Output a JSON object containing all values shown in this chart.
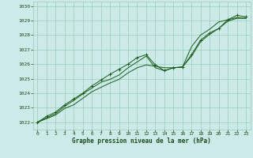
{
  "xlabel": "Graphe pression niveau de la mer (hPa)",
  "bg_color": "#cceae8",
  "grid_color": "#99ccbb",
  "line_color": "#1a5c1a",
  "text_color": "#1a4a1a",
  "ylim": [
    1021.5,
    1030.3
  ],
  "xlim": [
    -0.5,
    23.5
  ],
  "yticks": [
    1022,
    1023,
    1024,
    1025,
    1026,
    1027,
    1028,
    1029,
    1030
  ],
  "xticks": [
    0,
    1,
    2,
    3,
    4,
    5,
    6,
    7,
    8,
    9,
    10,
    11,
    12,
    13,
    14,
    15,
    16,
    17,
    18,
    19,
    20,
    21,
    22,
    23
  ],
  "series1": [
    1022.0,
    1022.25,
    1022.5,
    1022.95,
    1023.2,
    1023.65,
    1024.1,
    1024.4,
    1024.7,
    1024.95,
    1025.4,
    1025.75,
    1025.95,
    1025.85,
    1025.75,
    1025.75,
    1025.8,
    1027.2,
    1028.0,
    1028.4,
    1028.9,
    1029.05,
    1029.2,
    1029.15
  ],
  "series2": [
    1022.0,
    1022.3,
    1022.6,
    1023.1,
    1023.5,
    1023.95,
    1024.35,
    1024.75,
    1024.95,
    1025.25,
    1025.75,
    1026.15,
    1026.55,
    1025.75,
    1025.55,
    1025.75,
    1025.8,
    1026.55,
    1027.55,
    1028.05,
    1028.45,
    1028.95,
    1029.15,
    1029.15
  ],
  "series3": [
    1022.0,
    1022.4,
    1022.7,
    1023.2,
    1023.6,
    1024.0,
    1024.5,
    1024.9,
    1025.3,
    1025.65,
    1026.0,
    1026.45,
    1026.65,
    1025.95,
    1025.55,
    1025.75,
    1025.8,
    1026.65,
    1027.65,
    1028.15,
    1028.45,
    1029.05,
    1029.35,
    1029.25
  ]
}
